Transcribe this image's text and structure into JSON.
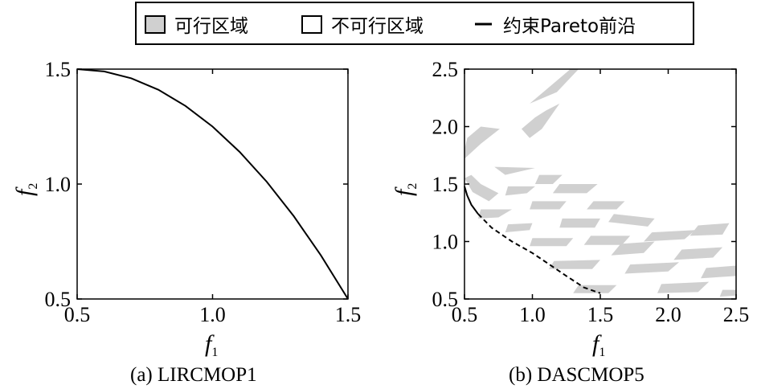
{
  "legend": {
    "items": [
      {
        "label": "可行区域",
        "swatch": "#d0d0d0"
      },
      {
        "label": "不可行区域",
        "swatch": "#ffffff"
      },
      {
        "label": "约束Pareto前沿",
        "marker": "line"
      }
    ]
  },
  "chart_data": [
    {
      "type": "line",
      "panel": "a",
      "caption": "(a) LIRCMOP1",
      "xlabel": "f",
      "xlabel_sub": "1",
      "ylabel": "f",
      "ylabel_sub": "2",
      "xlim": [
        0.5,
        1.5
      ],
      "ylim": [
        0.5,
        1.5
      ],
      "xticks": [
        "0.5",
        "1.0",
        "1.5"
      ],
      "yticks": [
        "0.5",
        "1.0",
        "1.5"
      ],
      "series": [
        {
          "style": "solid",
          "color": "#000000",
          "x": [
            0.5,
            0.6,
            0.7,
            0.8,
            0.9,
            1.0,
            1.1,
            1.2,
            1.3,
            1.4,
            1.5
          ],
          "y": [
            1.5,
            1.49,
            1.46,
            1.41,
            1.34,
            1.25,
            1.14,
            1.01,
            0.86,
            0.69,
            0.5
          ]
        }
      ],
      "grid": false
    },
    {
      "type": "area",
      "panel": "b",
      "caption": "(b) DASCMOP5",
      "xlabel": "f",
      "xlabel_sub": "1",
      "ylabel": "f",
      "ylabel_sub": "2",
      "xlim": [
        0.5,
        2.5
      ],
      "ylim": [
        0.5,
        2.5
      ],
      "xticks": [
        "0.5",
        "1.0",
        "1.5",
        "2.0",
        "2.5"
      ],
      "yticks": [
        "0.5",
        "1.0",
        "1.5",
        "2.0",
        "2.5"
      ],
      "feasible_color": "#d0d0d0",
      "feasible_regions": [
        [
          [
            0.5,
            1.72
          ],
          [
            0.62,
            1.85
          ],
          [
            0.76,
            1.98
          ],
          [
            0.62,
            2.0
          ],
          [
            0.52,
            1.9
          ],
          [
            0.5,
            1.8
          ]
        ],
        [
          [
            0.5,
            1.55
          ],
          [
            0.56,
            1.43
          ],
          [
            0.68,
            1.35
          ],
          [
            0.75,
            1.42
          ],
          [
            0.62,
            1.5
          ],
          [
            0.55,
            1.58
          ]
        ],
        [
          [
            0.92,
            1.98
          ],
          [
            1.02,
            2.08
          ],
          [
            1.1,
            2.14
          ],
          [
            1.2,
            2.2
          ],
          [
            1.07,
            1.98
          ],
          [
            0.98,
            1.9
          ]
        ],
        [
          [
            0.98,
            2.2
          ],
          [
            1.12,
            2.34
          ],
          [
            1.28,
            2.5
          ],
          [
            1.34,
            2.5
          ],
          [
            1.18,
            2.3
          ]
        ],
        [
          [
            0.72,
            1.65
          ],
          [
            1.02,
            1.64
          ],
          [
            0.8,
            1.58
          ]
        ],
        [
          [
            0.62,
            1.28
          ],
          [
            0.85,
            1.28
          ],
          [
            0.75,
            1.21
          ],
          [
            0.6,
            1.2
          ]
        ],
        [
          [
            0.82,
            1.48
          ],
          [
            1.02,
            1.48
          ],
          [
            0.96,
            1.42
          ],
          [
            0.8,
            1.4
          ]
        ],
        [
          [
            1.05,
            1.58
          ],
          [
            1.22,
            1.58
          ],
          [
            1.15,
            1.5
          ],
          [
            1.02,
            1.5
          ]
        ],
        [
          [
            0.82,
            1.15
          ],
          [
            1.0,
            1.16
          ],
          [
            0.98,
            1.1
          ],
          [
            0.8,
            1.08
          ]
        ],
        [
          [
            1.0,
            1.35
          ],
          [
            1.25,
            1.35
          ],
          [
            1.2,
            1.28
          ],
          [
            0.98,
            1.28
          ]
        ],
        [
          [
            1.2,
            1.5
          ],
          [
            1.48,
            1.5
          ],
          [
            1.4,
            1.42
          ],
          [
            1.15,
            1.42
          ]
        ],
        [
          [
            1.0,
            1.03
          ],
          [
            1.3,
            1.03
          ],
          [
            1.25,
            0.96
          ],
          [
            0.98,
            0.96
          ]
        ],
        [
          [
            1.22,
            1.2
          ],
          [
            1.5,
            1.2
          ],
          [
            1.46,
            1.12
          ],
          [
            1.2,
            1.12
          ]
        ],
        [
          [
            1.45,
            1.35
          ],
          [
            1.68,
            1.35
          ],
          [
            1.62,
            1.28
          ],
          [
            1.4,
            1.28
          ]
        ],
        [
          [
            1.16,
            0.83
          ],
          [
            1.5,
            0.84
          ],
          [
            1.44,
            0.76
          ],
          [
            1.12,
            0.76
          ]
        ],
        [
          [
            1.43,
            1.05
          ],
          [
            1.72,
            1.05
          ],
          [
            1.66,
            0.97
          ],
          [
            1.38,
            0.97
          ]
        ],
        [
          [
            1.6,
            1.24
          ],
          [
            1.9,
            1.2
          ],
          [
            1.85,
            1.13
          ],
          [
            1.56,
            1.17
          ]
        ],
        [
          [
            1.34,
            0.62
          ],
          [
            1.62,
            0.62
          ],
          [
            1.56,
            0.55
          ],
          [
            1.3,
            0.55
          ]
        ],
        [
          [
            1.65,
            0.98
          ],
          [
            1.9,
            1.0
          ],
          [
            1.82,
            0.9
          ],
          [
            1.58,
            0.88
          ]
        ],
        [
          [
            1.72,
            0.8
          ],
          [
            2.08,
            0.82
          ],
          [
            2.0,
            0.74
          ],
          [
            1.68,
            0.72
          ]
        ],
        [
          [
            1.88,
            1.08
          ],
          [
            2.2,
            1.1
          ],
          [
            2.12,
            1.02
          ],
          [
            1.82,
            1.0
          ]
        ],
        [
          [
            1.95,
            0.63
          ],
          [
            2.3,
            0.65
          ],
          [
            2.22,
            0.56
          ],
          [
            1.92,
            0.55
          ]
        ],
        [
          [
            2.1,
            0.93
          ],
          [
            2.4,
            0.95
          ],
          [
            2.33,
            0.86
          ],
          [
            2.04,
            0.84
          ]
        ],
        [
          [
            2.22,
            1.14
          ],
          [
            2.45,
            1.16
          ],
          [
            2.4,
            1.06
          ],
          [
            2.16,
            1.05
          ]
        ],
        [
          [
            2.28,
            0.77
          ],
          [
            2.5,
            0.79
          ],
          [
            2.5,
            0.7
          ],
          [
            2.24,
            0.68
          ]
        ],
        [
          [
            2.4,
            0.58
          ],
          [
            2.5,
            0.58
          ],
          [
            2.5,
            0.53
          ],
          [
            2.38,
            0.52
          ]
        ]
      ],
      "series": [
        {
          "style": "solid",
          "color": "#000000",
          "x": [
            0.5,
            0.52,
            0.55,
            0.6
          ],
          "y": [
            1.48,
            1.4,
            1.32,
            1.24
          ]
        },
        {
          "style": "dashed",
          "color": "#000000",
          "x": [
            0.6,
            0.7,
            0.85,
            1.0,
            1.1,
            1.25,
            1.38,
            1.5
          ],
          "y": [
            1.24,
            1.12,
            1.0,
            0.9,
            0.82,
            0.7,
            0.6,
            0.55
          ]
        }
      ],
      "grid": false
    }
  ]
}
